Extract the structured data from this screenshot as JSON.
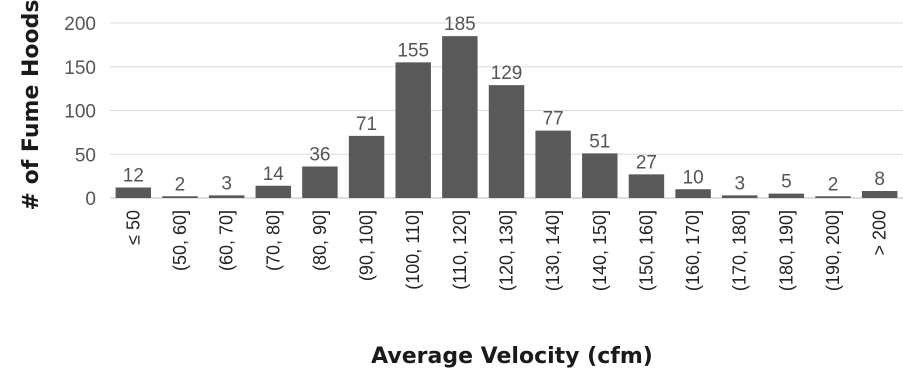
{
  "chart_data": {
    "type": "bar",
    "title": "",
    "xlabel": "Average Velocity (cfm)",
    "ylabel": "# of Fume Hoods",
    "ylim": [
      0,
      200
    ],
    "yticks": [
      0,
      50,
      100,
      150,
      200
    ],
    "grid": true,
    "legend": "none",
    "bar_color": "#595959",
    "categories": [
      "≤ 50",
      "(50, 60]",
      "(60, 70]",
      "(70, 80]",
      "(80, 90]",
      "(90, 100]",
      "(100, 110]",
      "(110, 120]",
      "(120, 130]",
      "(130, 140]",
      "(140, 150]",
      "(150, 160]",
      "(160, 170]",
      "(170, 180]",
      "(180, 190]",
      "(190, 200]",
      "> 200"
    ],
    "values": [
      12,
      2,
      3,
      14,
      36,
      71,
      155,
      185,
      129,
      77,
      51,
      27,
      10,
      3,
      5,
      2,
      8
    ]
  }
}
